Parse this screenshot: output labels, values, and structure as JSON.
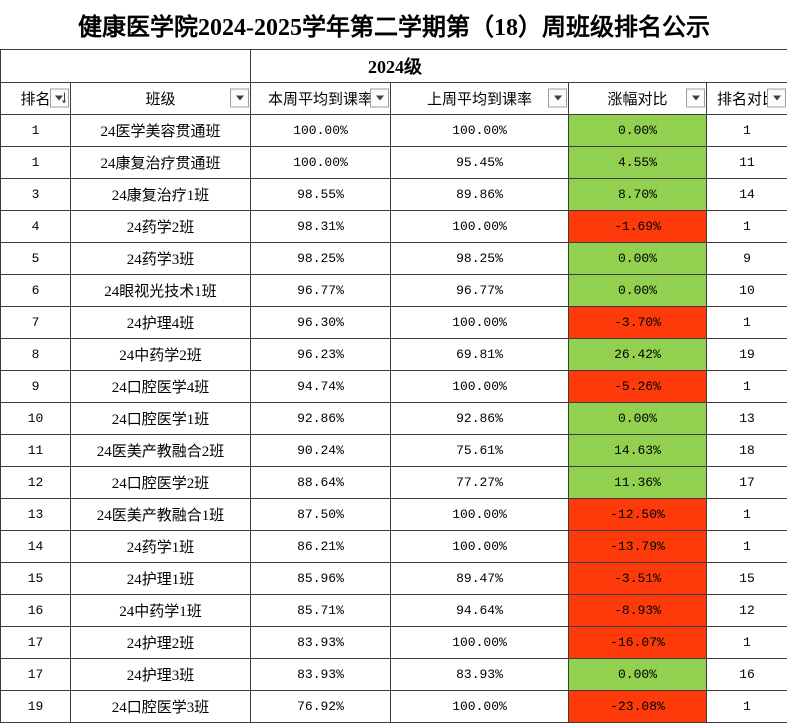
{
  "title": "健康医学院2024-2025学年第二学期第（18）周班级排名公示",
  "grade": "2024级",
  "headers": {
    "rank": "排名",
    "class": "班级",
    "this_week": "本周平均到课率",
    "last_week": "上周平均到课率",
    "change": "涨幅对比",
    "rank_compare": "排名对比"
  },
  "icons": {
    "filter_button": "chevron-down-icon",
    "sorted_filter_button": "sort-descending-icon"
  },
  "colors": {
    "increase_fill": "#92D050",
    "decrease_fill": "#FF3A0A",
    "gridline": "#3C3C3C"
  },
  "rows": [
    {
      "rank": "1",
      "class": "24医学美容贯通班",
      "this_week": "100.00%",
      "last_week": "100.00%",
      "change": "0.00%",
      "fill": "#92D050",
      "rank_compare": "1"
    },
    {
      "rank": "1",
      "class": "24康复治疗贯通班",
      "this_week": "100.00%",
      "last_week": "95.45%",
      "change": "4.55%",
      "fill": "#92D050",
      "rank_compare": "11"
    },
    {
      "rank": "3",
      "class": "24康复治疗1班",
      "this_week": "98.55%",
      "last_week": "89.86%",
      "change": "8.70%",
      "fill": "#92D050",
      "rank_compare": "14"
    },
    {
      "rank": "4",
      "class": "24药学2班",
      "this_week": "98.31%",
      "last_week": "100.00%",
      "change": "-1.69%",
      "fill": "#FF3A0A",
      "rank_compare": "1"
    },
    {
      "rank": "5",
      "class": "24药学3班",
      "this_week": "98.25%",
      "last_week": "98.25%",
      "change": "0.00%",
      "fill": "#92D050",
      "rank_compare": "9"
    },
    {
      "rank": "6",
      "class": "24眼视光技术1班",
      "this_week": "96.77%",
      "last_week": "96.77%",
      "change": "0.00%",
      "fill": "#92D050",
      "rank_compare": "10"
    },
    {
      "rank": "7",
      "class": "24护理4班",
      "this_week": "96.30%",
      "last_week": "100.00%",
      "change": "-3.70%",
      "fill": "#FF3A0A",
      "rank_compare": "1"
    },
    {
      "rank": "8",
      "class": "24中药学2班",
      "this_week": "96.23%",
      "last_week": "69.81%",
      "change": "26.42%",
      "fill": "#92D050",
      "rank_compare": "19"
    },
    {
      "rank": "9",
      "class": "24口腔医学4班",
      "this_week": "94.74%",
      "last_week": "100.00%",
      "change": "-5.26%",
      "fill": "#FF3A0A",
      "rank_compare": "1"
    },
    {
      "rank": "10",
      "class": "24口腔医学1班",
      "this_week": "92.86%",
      "last_week": "92.86%",
      "change": "0.00%",
      "fill": "#92D050",
      "rank_compare": "13"
    },
    {
      "rank": "11",
      "class": "24医美产教融合2班",
      "this_week": "90.24%",
      "last_week": "75.61%",
      "change": "14.63%",
      "fill": "#92D050",
      "rank_compare": "18"
    },
    {
      "rank": "12",
      "class": "24口腔医学2班",
      "this_week": "88.64%",
      "last_week": "77.27%",
      "change": "11.36%",
      "fill": "#92D050",
      "rank_compare": "17"
    },
    {
      "rank": "13",
      "class": "24医美产教融合1班",
      "this_week": "87.50%",
      "last_week": "100.00%",
      "change": "-12.50%",
      "fill": "#FF3A0A",
      "rank_compare": "1"
    },
    {
      "rank": "14",
      "class": "24药学1班",
      "this_week": "86.21%",
      "last_week": "100.00%",
      "change": "-13.79%",
      "fill": "#FF3A0A",
      "rank_compare": "1"
    },
    {
      "rank": "15",
      "class": "24护理1班",
      "this_week": "85.96%",
      "last_week": "89.47%",
      "change": "-3.51%",
      "fill": "#FF3A0A",
      "rank_compare": "15"
    },
    {
      "rank": "16",
      "class": "24中药学1班",
      "this_week": "85.71%",
      "last_week": "94.64%",
      "change": "-8.93%",
      "fill": "#FF3A0A",
      "rank_compare": "12"
    },
    {
      "rank": "17",
      "class": "24护理2班",
      "this_week": "83.93%",
      "last_week": "100.00%",
      "change": "-16.07%",
      "fill": "#FF3A0A",
      "rank_compare": "1"
    },
    {
      "rank": "17",
      "class": "24护理3班",
      "this_week": "83.93%",
      "last_week": "83.93%",
      "change": "0.00%",
      "fill": "#92D050",
      "rank_compare": "16"
    },
    {
      "rank": "19",
      "class": "24口腔医学3班",
      "this_week": "76.92%",
      "last_week": "100.00%",
      "change": "-23.08%",
      "fill": "#FF3A0A",
      "rank_compare": "1"
    }
  ]
}
